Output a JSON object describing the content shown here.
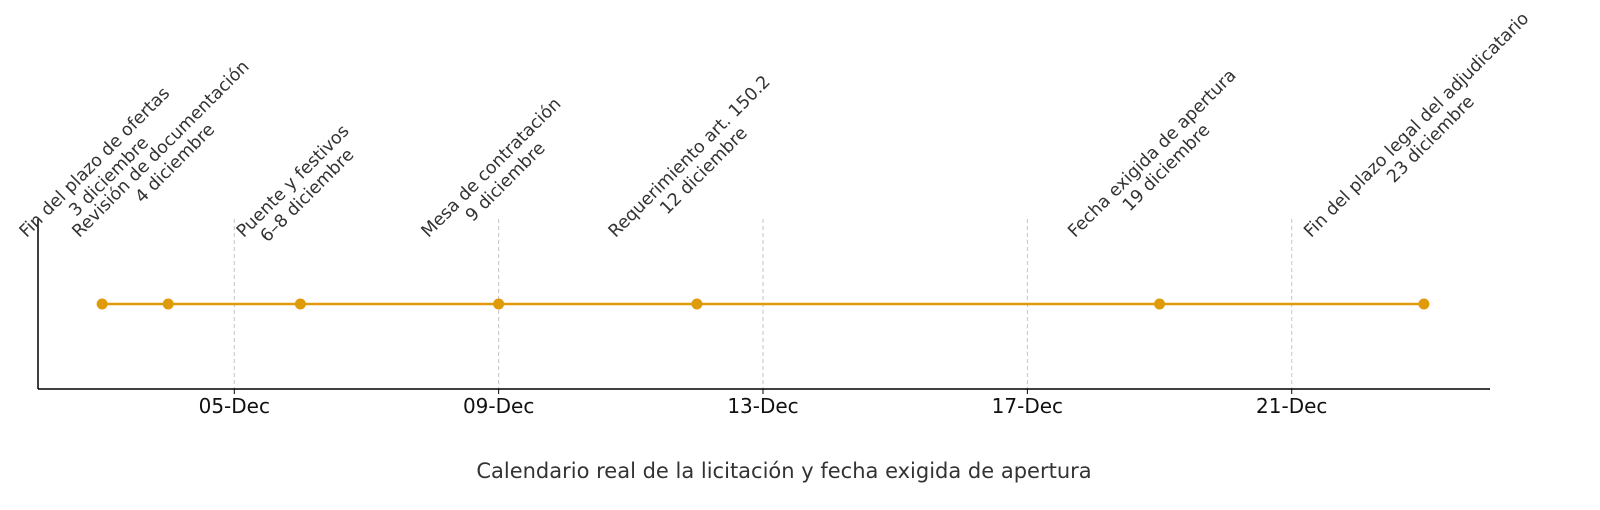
{
  "chart_data": {
    "type": "line",
    "title": "",
    "xlabel": "Calendario real de la licitación y fecha exigida de apertura",
    "ylabel": "",
    "x_axis": "date (December)",
    "xlim": [
      "02-Dec",
      "24-Dec"
    ],
    "xticks": [
      "05-Dec",
      "09-Dec",
      "13-Dec",
      "17-Dec",
      "21-Dec"
    ],
    "grid": "vertical dashed at ticks",
    "color": "#e09b0b",
    "points": [
      {
        "x": "03-Dec",
        "label": [
          "Fin del plazo de ofertas",
          "3 diciembre"
        ]
      },
      {
        "x": "04-Dec",
        "label": [
          "Revisión de documentación",
          "4 diciembre"
        ]
      },
      {
        "x": "06-Dec",
        "label": [
          "Puente y festivos",
          "6–8 diciembre"
        ]
      },
      {
        "x": "09-Dec",
        "label": [
          "Mesa de contratación",
          "9 diciembre"
        ]
      },
      {
        "x": "12-Dec",
        "label": [
          "Requerimiento art. 150.2",
          "12 diciembre"
        ]
      },
      {
        "x": "19-Dec",
        "label": [
          "Fecha exigida de apertura",
          "19 diciembre"
        ]
      },
      {
        "x": "23-Dec",
        "label": [
          "Fin del plazo legal del adjudicatario",
          "23 diciembre"
        ]
      }
    ]
  }
}
